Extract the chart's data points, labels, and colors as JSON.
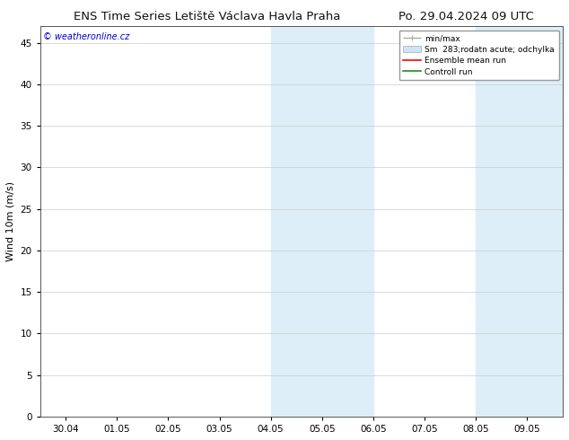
{
  "title_left": "ENS Time Series Letiště Václava Havla Praha",
  "title_right": "Po. 29.04.2024 09 UTC",
  "ylabel": "Wind 10m (m/s)",
  "watermark": "© weatheronline.cz",
  "watermark_color": "#0000cc",
  "ylim": [
    0,
    47
  ],
  "yticks": [
    0,
    5,
    10,
    15,
    20,
    25,
    30,
    35,
    40,
    45
  ],
  "xtick_labels": [
    "30.04",
    "01.05",
    "02.05",
    "03.05",
    "04.05",
    "05.05",
    "06.05",
    "07.05",
    "08.05",
    "09.05"
  ],
  "xtick_positions": [
    0,
    1,
    2,
    3,
    4,
    5,
    6,
    7,
    8,
    9
  ],
  "xlim": [
    -0.5,
    9.7
  ],
  "shade_bands": [
    {
      "x_start": 4.0,
      "x_end": 6.0
    },
    {
      "x_start": 8.0,
      "x_end": 9.7
    }
  ],
  "shade_color": "#ddeef8",
  "background_color": "#ffffff",
  "grid_color": "#cccccc",
  "font_size_title": 9.5,
  "font_size_axis": 8,
  "font_size_legend": 6.5,
  "font_size_watermark": 7,
  "font_size_ticks": 7.5,
  "legend_minmax_color": "#aaaaaa",
  "legend_sm_facecolor": "#cce4f5",
  "legend_ens_color": "#ff0000",
  "legend_ctrl_color": "#228B22"
}
